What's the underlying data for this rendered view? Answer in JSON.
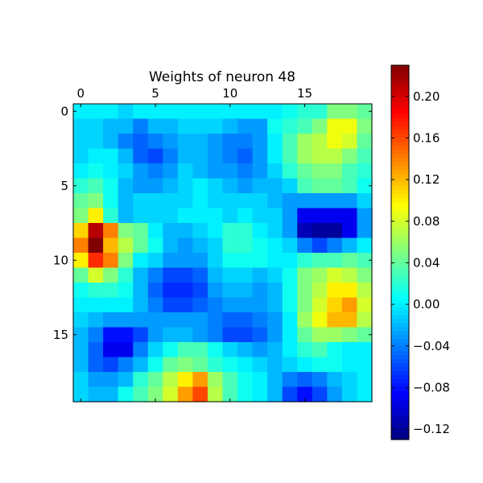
{
  "chart_data": {
    "type": "heatmap",
    "title": "Weights of neuron 48",
    "rows": 20,
    "cols": 20,
    "x_ticks": [
      "0",
      "5",
      "10",
      "15"
    ],
    "x_tick_values": [
      0,
      5,
      10,
      15
    ],
    "y_ticks": [
      "0",
      "5",
      "10",
      "15"
    ],
    "y_tick_values": [
      0,
      5,
      10,
      15
    ],
    "x_axis_position": "top",
    "colormap": "jet",
    "colorbar": {
      "min": -0.13,
      "max": 0.23,
      "ticks": [
        "0.20",
        "0.16",
        "0.12",
        "0.08",
        "0.04",
        "0.00",
        "−0.04",
        "−0.08",
        "−0.12"
      ],
      "tick_values": [
        0.2,
        0.16,
        0.12,
        0.08,
        0.04,
        0.0,
        -0.04,
        -0.08,
        -0.12
      ]
    },
    "grid": false,
    "values": [
      [
        0.0,
        0.0,
        0.0,
        -0.01,
        0.0,
        0.0,
        0.0,
        0.0,
        0.0,
        0.0,
        0.0,
        0.0,
        0.0,
        0.0,
        0.01,
        0.02,
        0.02,
        0.05,
        0.05,
        0.04
      ],
      [
        -0.01,
        -0.01,
        -0.02,
        -0.02,
        -0.04,
        -0.02,
        -0.02,
        -0.01,
        -0.01,
        -0.01,
        -0.02,
        -0.03,
        -0.03,
        0.01,
        0.02,
        0.03,
        0.05,
        0.09,
        0.09,
        0.05
      ],
      [
        -0.01,
        -0.01,
        -0.02,
        -0.04,
        -0.05,
        -0.04,
        -0.03,
        -0.02,
        -0.02,
        -0.03,
        -0.04,
        -0.04,
        -0.03,
        0.0,
        0.03,
        0.06,
        0.07,
        0.09,
        0.08,
        0.04
      ],
      [
        -0.01,
        0.0,
        0.0,
        -0.02,
        -0.05,
        -0.06,
        -0.04,
        -0.02,
        -0.02,
        -0.03,
        -0.04,
        -0.05,
        -0.03,
        0.0,
        0.03,
        0.06,
        0.07,
        0.07,
        0.05,
        0.03
      ],
      [
        0.0,
        0.01,
        0.0,
        -0.01,
        -0.03,
        -0.04,
        -0.03,
        -0.01,
        -0.02,
        -0.03,
        -0.03,
        -0.04,
        -0.03,
        -0.01,
        0.02,
        0.04,
        0.05,
        0.05,
        0.03,
        0.02
      ],
      [
        0.02,
        0.03,
        0.01,
        -0.02,
        -0.03,
        -0.03,
        -0.02,
        -0.01,
        0.0,
        -0.01,
        -0.02,
        -0.03,
        -0.02,
        -0.02,
        -0.01,
        0.03,
        0.04,
        0.04,
        0.03,
        0.01
      ],
      [
        0.04,
        0.05,
        0.01,
        -0.02,
        -0.01,
        -0.01,
        -0.01,
        -0.01,
        0.0,
        -0.01,
        -0.01,
        -0.01,
        -0.01,
        -0.02,
        -0.03,
        -0.03,
        -0.03,
        -0.03,
        -0.03,
        -0.01
      ],
      [
        0.05,
        0.1,
        0.02,
        -0.02,
        -0.01,
        -0.01,
        -0.01,
        0.0,
        0.0,
        0.0,
        -0.01,
        0.0,
        -0.01,
        -0.01,
        -0.03,
        -0.09,
        -0.09,
        -0.09,
        -0.09,
        -0.03
      ],
      [
        0.11,
        0.21,
        0.14,
        0.05,
        0.04,
        0.0,
        -0.02,
        -0.02,
        -0.01,
        0.0,
        0.02,
        0.02,
        0.0,
        -0.01,
        -0.03,
        -0.11,
        -0.12,
        -0.12,
        -0.09,
        -0.03
      ],
      [
        0.14,
        0.23,
        0.12,
        0.07,
        0.04,
        0.01,
        -0.02,
        -0.03,
        -0.02,
        -0.01,
        0.02,
        0.02,
        0.01,
        0.0,
        -0.01,
        -0.04,
        -0.06,
        -0.04,
        -0.02,
        0.0
      ],
      [
        0.1,
        0.17,
        0.14,
        0.05,
        0.0,
        -0.01,
        -0.03,
        -0.03,
        -0.03,
        -0.01,
        0.01,
        0.01,
        0.01,
        0.0,
        0.0,
        0.02,
        0.03,
        0.03,
        0.04,
        0.03
      ],
      [
        0.04,
        0.08,
        0.05,
        0.02,
        -0.02,
        -0.04,
        -0.06,
        -0.06,
        -0.05,
        -0.02,
        -0.01,
        -0.01,
        -0.02,
        -0.01,
        0.01,
        0.05,
        0.06,
        0.08,
        0.07,
        0.05
      ],
      [
        0.01,
        0.02,
        0.02,
        0.01,
        -0.02,
        -0.05,
        -0.07,
        -0.07,
        -0.06,
        -0.03,
        -0.02,
        -0.02,
        -0.03,
        -0.02,
        0.01,
        0.05,
        0.07,
        0.1,
        0.1,
        0.07
      ],
      [
        0.0,
        0.0,
        0.0,
        0.0,
        -0.02,
        -0.04,
        -0.06,
        -0.06,
        -0.05,
        -0.04,
        -0.03,
        -0.03,
        -0.03,
        -0.02,
        0.01,
        0.05,
        0.08,
        0.11,
        0.13,
        0.08
      ],
      [
        -0.01,
        -0.02,
        -0.03,
        -0.03,
        -0.03,
        -0.03,
        -0.03,
        -0.03,
        -0.03,
        -0.04,
        -0.05,
        -0.05,
        -0.04,
        -0.03,
        0.0,
        0.06,
        0.09,
        0.12,
        0.12,
        0.07
      ],
      [
        -0.02,
        -0.04,
        -0.08,
        -0.08,
        -0.06,
        -0.03,
        -0.02,
        -0.02,
        -0.03,
        -0.04,
        -0.06,
        -0.06,
        -0.05,
        -0.03,
        0.0,
        0.04,
        0.06,
        0.06,
        0.05,
        0.04
      ],
      [
        -0.02,
        -0.05,
        -0.09,
        -0.09,
        -0.04,
        -0.01,
        0.01,
        0.03,
        0.03,
        0.01,
        -0.01,
        -0.02,
        -0.03,
        -0.02,
        0.0,
        0.02,
        0.03,
        0.01,
        0.0,
        0.0
      ],
      [
        -0.02,
        -0.05,
        -0.06,
        -0.04,
        -0.02,
        0.01,
        0.04,
        0.05,
        0.04,
        0.02,
        0.01,
        0.0,
        -0.01,
        -0.02,
        -0.01,
        0.0,
        0.01,
        0.01,
        0.0,
        0.0
      ],
      [
        -0.01,
        -0.03,
        -0.03,
        -0.02,
        0.02,
        0.04,
        0.07,
        0.1,
        0.13,
        0.06,
        0.03,
        0.01,
        0.0,
        -0.02,
        -0.04,
        -0.05,
        -0.04,
        -0.02,
        -0.01,
        0.0
      ],
      [
        -0.01,
        -0.02,
        -0.02,
        0.01,
        0.03,
        0.05,
        0.08,
        0.13,
        0.16,
        0.07,
        0.03,
        0.01,
        0.0,
        -0.02,
        -0.06,
        -0.08,
        -0.06,
        -0.03,
        -0.01,
        0.0
      ]
    ]
  }
}
